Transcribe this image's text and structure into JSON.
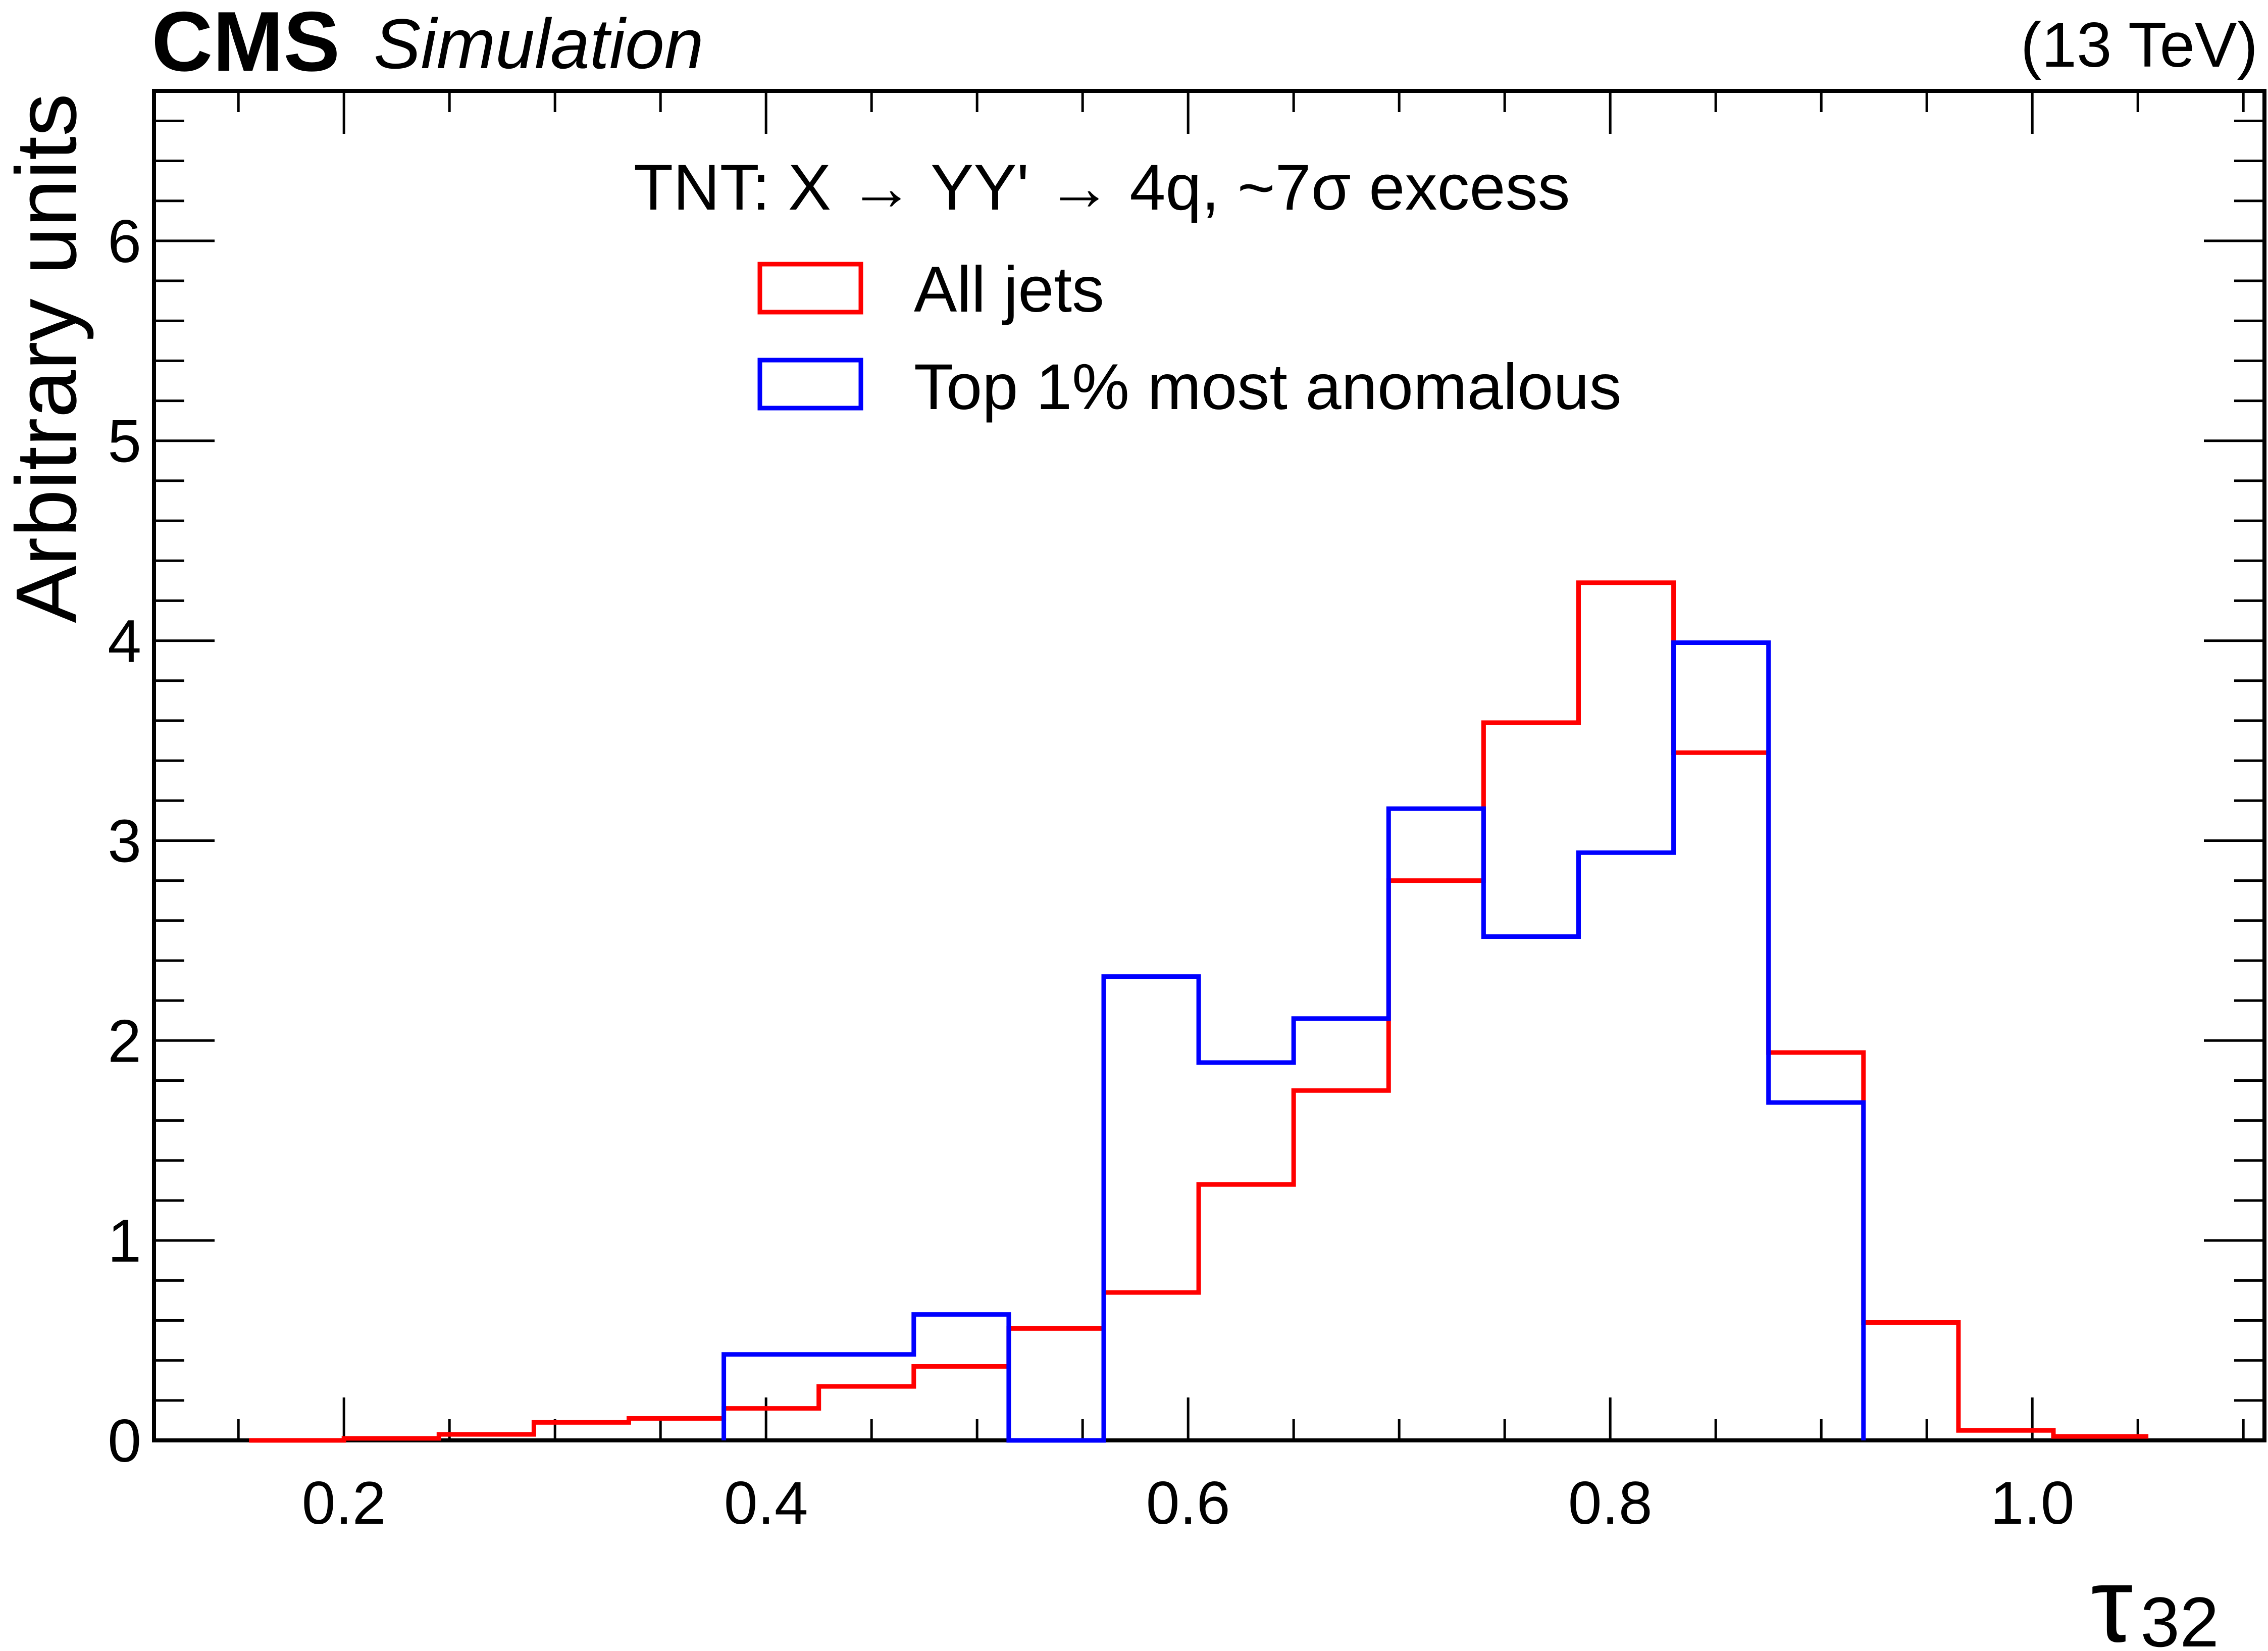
{
  "header": {
    "experiment": "CMS",
    "label": "Simulation",
    "energy": "(13 TeV)"
  },
  "chart_data": {
    "type": "step-histogram",
    "xlabel": "τ",
    "xlabel_sub": "32",
    "ylabel": "Arbitrary units",
    "xlim": [
      0.11,
      1.11
    ],
    "ylim": [
      0,
      6.75
    ],
    "x_ticks": [
      0.2,
      0.4,
      0.6,
      0.8,
      1.0
    ],
    "x_tick_labels": [
      "0.2",
      "0.4",
      "0.6",
      "0.8",
      "1.0"
    ],
    "y_ticks": [
      0,
      1,
      2,
      3,
      4,
      5,
      6
    ],
    "y_tick_labels": [
      "0",
      "1",
      "2",
      "3",
      "4",
      "5",
      "6"
    ],
    "bin_edges": [
      0.155,
      0.2,
      0.245,
      0.29,
      0.335,
      0.38,
      0.425,
      0.47,
      0.515,
      0.56,
      0.605,
      0.65,
      0.695,
      0.74,
      0.785,
      0.83,
      0.875,
      0.92,
      0.965,
      1.01,
      1.055
    ],
    "legend_header": "TNT: X  →  YY'  →  4q,  ~7σ excess",
    "legend_position": "top-center",
    "series": [
      {
        "name": "All jets",
        "color": "#ff0000",
        "values": [
          0.0,
          0.01,
          0.03,
          0.09,
          0.11,
          0.16,
          0.27,
          0.37,
          0.56,
          0.74,
          1.28,
          1.75,
          2.8,
          3.59,
          4.29,
          3.44,
          1.94,
          0.59,
          0.05,
          0.02
        ]
      },
      {
        "name": "Top 1% most anomalous",
        "color": "#0000ff",
        "values": [
          null,
          null,
          null,
          null,
          null,
          0.43,
          0.43,
          0.63,
          0.0,
          2.32,
          1.89,
          2.11,
          3.16,
          2.52,
          2.94,
          3.99,
          1.69,
          null,
          null,
          null
        ]
      }
    ]
  }
}
